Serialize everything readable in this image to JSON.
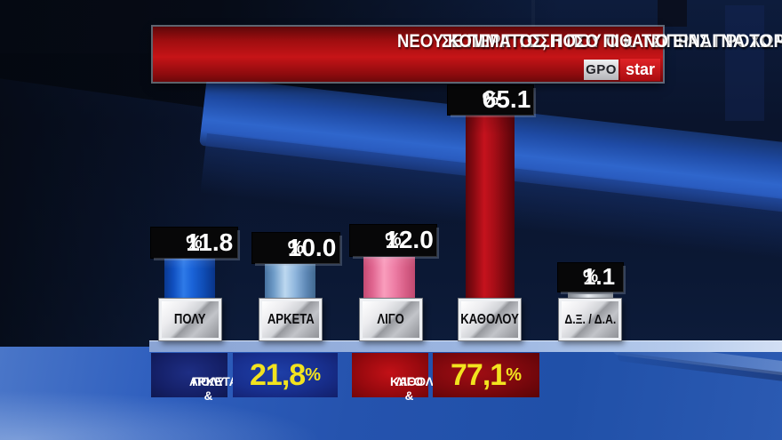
{
  "header": {
    "question_line1": "ΣΕ ΠΕΡΙΠΤΩΣΗ ΠΟΥ Ο κ. ΤΣΙΠΡΑΣ ΠΡΟΧΩΡΗΣΕΙ ΣΤΗΝ ΙΔΡΥΣΗ",
    "question_line2": "ΝΕΟΥ ΚΟΜΜΑΤΟΣ, ΠΟΣΟ ΠΙΘΑΝΟ ΕΙΝΑΙ ΝΑ ΤΟ ΨΗΦΙΣΕΤΕ;",
    "pollster_logo": "GPO",
    "channel_logo": "star"
  },
  "percent_sign": "%",
  "chart_data": {
    "type": "bar",
    "title": "ΣΕ ΠΕΡΙΠΤΩΣΗ ΠΟΥ Ο κ. ΤΣΙΠΡΑΣ ΠΡΟΧΩΡΗΣΕΙ ΣΤΗΝ ΙΔΡΥΣΗ ΝΕΟΥ ΚΟΜΜΑΤΟΣ, ΠΟΣΟ ΠΙΘΑΝΟ ΕΙΝΑΙ ΝΑ ΤΟ ΨΗΦΙΣΕΤΕ;",
    "categories": [
      "ΠΟΛΥ",
      "ΑΡΚΕΤΑ",
      "ΛΙΓΟ",
      "ΚΑΘΟΛΟΥ",
      "Δ.Ξ. / Δ.Α."
    ],
    "values": [
      11.8,
      10.0,
      12.0,
      65.1,
      1.1
    ],
    "value_labels": [
      "11.8",
      "10.0",
      "12.0",
      "65.1",
      "1.1"
    ],
    "bar_colors": [
      "#1a63d8",
      "#8fb6dd",
      "#ee7ea6",
      "#a80e17",
      "#c3c9cf"
    ],
    "ylim": [
      0,
      100
    ],
    "grid": false,
    "legend": "none",
    "aggregates": [
      {
        "label_line1": "ΠΟΛΥ &",
        "label_line2": "ΑΡΚΕΤΑ",
        "value": "21,8",
        "box_color": "#182f8e",
        "text_color": "#f2e31f"
      },
      {
        "label_line1": "ΛΙΓΟ &",
        "label_line2": "ΚΑΘΟΛΟΥ",
        "value": "77,1",
        "box_color": "#7c080d",
        "text_color": "#f2e31f"
      }
    ]
  }
}
